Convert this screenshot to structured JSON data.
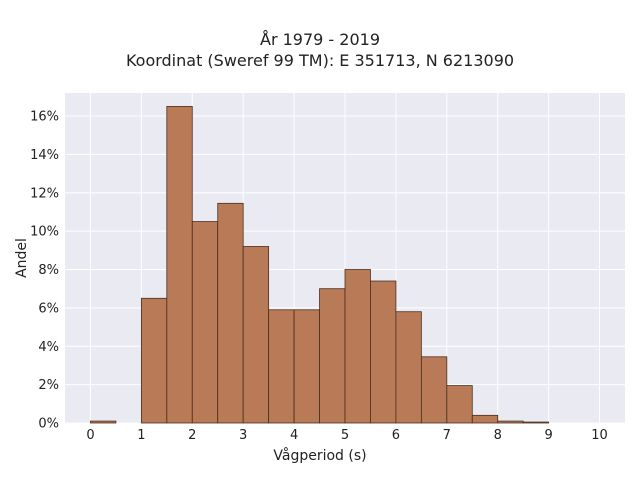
{
  "chart_data": {
    "type": "bar",
    "title_line1": "År 1979 - 2019",
    "title_line2": "Koordinat (Sweref 99 TM): E 351713, N 6213090",
    "xlabel": "Vågperiod (s)",
    "ylabel": "Andel",
    "bin_width": 0.5,
    "bins": [
      {
        "x0": 0.0,
        "value": 0.1
      },
      {
        "x0": 0.5,
        "value": 0.0
      },
      {
        "x0": 1.0,
        "value": 6.5
      },
      {
        "x0": 1.5,
        "value": 16.5
      },
      {
        "x0": 2.0,
        "value": 10.5
      },
      {
        "x0": 2.5,
        "value": 11.45
      },
      {
        "x0": 3.0,
        "value": 9.2
      },
      {
        "x0": 3.5,
        "value": 5.9
      },
      {
        "x0": 4.0,
        "value": 5.9
      },
      {
        "x0": 4.5,
        "value": 7.0
      },
      {
        "x0": 5.0,
        "value": 8.0
      },
      {
        "x0": 5.5,
        "value": 7.4
      },
      {
        "x0": 6.0,
        "value": 5.8
      },
      {
        "x0": 6.5,
        "value": 3.45
      },
      {
        "x0": 7.0,
        "value": 1.95
      },
      {
        "x0": 7.5,
        "value": 0.4
      },
      {
        "x0": 8.0,
        "value": 0.1
      },
      {
        "x0": 8.5,
        "value": 0.05
      }
    ],
    "xlim": [
      -0.5,
      10.5
    ],
    "ylim": [
      0,
      17.2
    ],
    "x_ticks": [
      {
        "v": 0,
        "label": "0"
      },
      {
        "v": 1,
        "label": "1"
      },
      {
        "v": 2,
        "label": "2"
      },
      {
        "v": 3,
        "label": "3"
      },
      {
        "v": 4,
        "label": "4"
      },
      {
        "v": 5,
        "label": "5"
      },
      {
        "v": 6,
        "label": "6"
      },
      {
        "v": 7,
        "label": "7"
      },
      {
        "v": 8,
        "label": "8"
      },
      {
        "v": 9,
        "label": "9"
      },
      {
        "v": 10,
        "label": "10"
      }
    ],
    "y_ticks": [
      {
        "v": 0,
        "label": "0%"
      },
      {
        "v": 2,
        "label": "2%"
      },
      {
        "v": 4,
        "label": "4%"
      },
      {
        "v": 6,
        "label": "6%"
      },
      {
        "v": 8,
        "label": "8%"
      },
      {
        "v": 10,
        "label": "10%"
      },
      {
        "v": 12,
        "label": "12%"
      },
      {
        "v": 14,
        "label": "14%"
      },
      {
        "v": 16,
        "label": "16%"
      }
    ],
    "grid": true,
    "colors": {
      "bar_fill": "#b97a57",
      "bar_edge": "#4a2e1e",
      "plot_background": "#eaeaf2",
      "grid": "#ffffff"
    }
  }
}
